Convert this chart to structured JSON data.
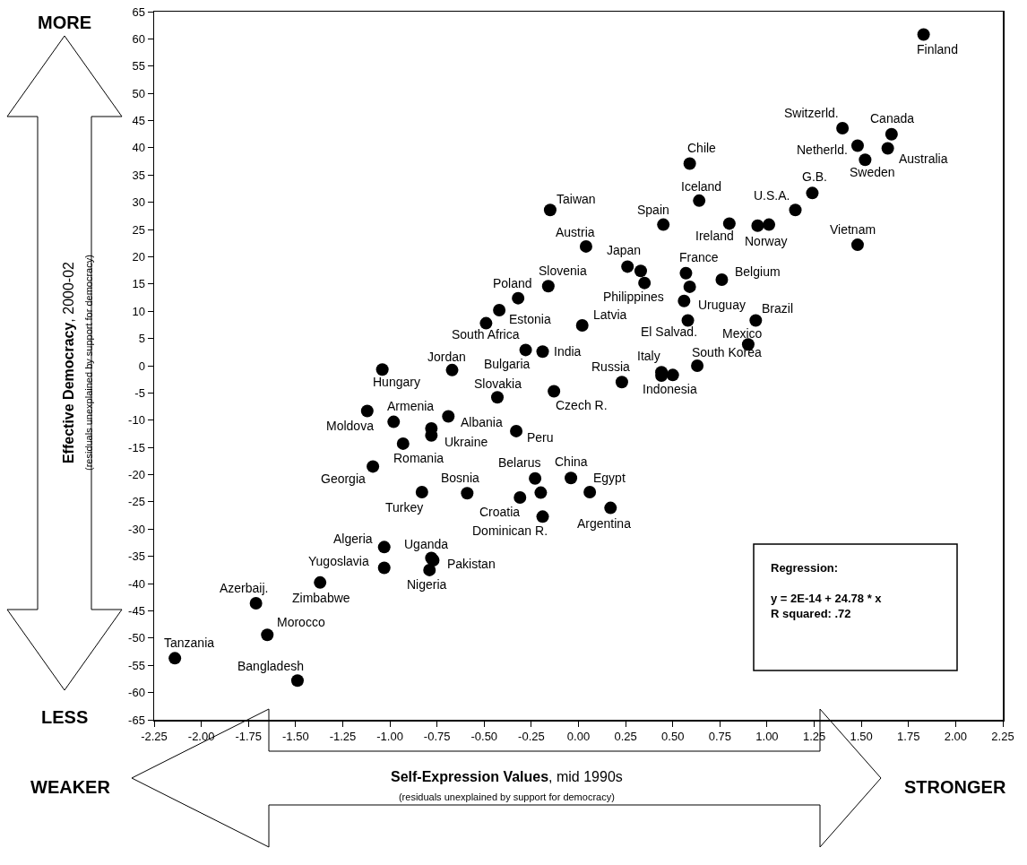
{
  "chart_data": {
    "type": "scatter",
    "color": "#000000",
    "marker": "circle",
    "grid": false,
    "xlabel": "Self-Expression Values, mid 1990s\n(residuals unexplained by support for democracy)",
    "ylabel": "Effective Democracy, 2000-02\n(residuals unexplained by support for democracy)",
    "xlim": [
      -2.25,
      2.25
    ],
    "xticks": [
      {
        "value": -2.25,
        "label": "-2.25"
      },
      {
        "value": -2,
        "label": "-2.00"
      },
      {
        "value": -1.75,
        "label": "-1.75"
      },
      {
        "value": -1.5,
        "label": "-1.50"
      },
      {
        "value": -1.25,
        "label": "-1.25"
      },
      {
        "value": -1,
        "label": "-1.00"
      },
      {
        "value": -0.75,
        "label": "-0.75"
      },
      {
        "value": -0.5,
        "label": "-0.50"
      },
      {
        "value": -0.25,
        "label": "-0.25"
      },
      {
        "value": 0,
        "label": "0.00"
      },
      {
        "value": 0.25,
        "label": "0.25"
      },
      {
        "value": 0.5,
        "label": "0.50"
      },
      {
        "value": 0.75,
        "label": "0.75"
      },
      {
        "value": 1,
        "label": "1.00"
      },
      {
        "value": 1.25,
        "label": "1.25"
      },
      {
        "value": 1.5,
        "label": "1.50"
      },
      {
        "value": 1.75,
        "label": "1.75"
      },
      {
        "value": 2,
        "label": "2.00"
      },
      {
        "value": 2.25,
        "label": "2.25"
      }
    ],
    "ylim": [
      -65,
      65
    ],
    "yticks": [
      -65,
      -60,
      -55,
      -50,
      -45,
      -40,
      -35,
      -30,
      -25,
      -20,
      -15,
      -10,
      -5,
      0,
      5,
      10,
      15,
      20,
      25,
      30,
      35,
      40,
      45,
      50,
      55,
      60,
      65
    ],
    "x": [
      1.83,
      1.4,
      1.66,
      1.48,
      1.64,
      1.52,
      0.59,
      1.24,
      0.64,
      1.15,
      0.45,
      0.8,
      0.95,
      1.01,
      1.48,
      -0.15,
      0.04,
      0.26,
      0.33,
      0.35,
      0.57,
      0.59,
      0.76,
      0.56,
      0.58,
      0.94,
      0.9,
      0.63,
      -0.16,
      -0.32,
      -0.42,
      -0.49,
      0.02,
      -0.28,
      -0.19,
      -0.67,
      -1.04,
      -0.43,
      -0.13,
      0.23,
      0.44,
      0.44,
      0.5,
      -0.98,
      -1.12,
      -0.69,
      -0.78,
      -0.78,
      -0.93,
      -0.33,
      -1.09,
      -0.83,
      -0.59,
      -0.23,
      -0.04,
      -0.31,
      -0.2,
      -0.19,
      0.06,
      0.17,
      -1.03,
      -1.03,
      -0.78,
      -0.77,
      -0.79,
      -1.37,
      -1.71,
      -1.65,
      -2.14,
      -1.49
    ],
    "values": [
      60.8,
      43.6,
      42.5,
      40.4,
      39.9,
      37.8,
      37.1,
      31.7,
      30.3,
      28.6,
      25.9,
      26.1,
      25.7,
      25.9,
      22.2,
      28.6,
      21.9,
      18.2,
      17.4,
      15.2,
      17.0,
      14.5,
      15.8,
      11.9,
      8.3,
      8.3,
      3.9,
      0.0,
      14.6,
      12.4,
      10.2,
      7.8,
      7.4,
      2.9,
      2.6,
      -0.8,
      -0.7,
      -5.8,
      -4.7,
      -3.0,
      -1.2,
      -1.8,
      -1.7,
      -10.3,
      -8.3,
      -9.3,
      -11.5,
      -12.8,
      -14.3,
      -12.0,
      -18.5,
      -23.2,
      -23.4,
      -20.7,
      -20.6,
      -24.2,
      -23.3,
      -27.7,
      -23.2,
      -26.1,
      -33.3,
      -37.1,
      -35.3,
      -35.7,
      -37.5,
      -39.8,
      -43.6,
      -49.4,
      -53.7,
      -57.8
    ],
    "annotations": [
      {
        "text": "Finland",
        "x": 1.83,
        "y": 60.8
      },
      {
        "text": "Switzerld.",
        "x": 1.4,
        "y": 43.6
      },
      {
        "text": "Canada",
        "x": 1.66,
        "y": 42.5
      },
      {
        "text": "Netherld.",
        "x": 1.48,
        "y": 40.4
      },
      {
        "text": "Australia",
        "x": 1.64,
        "y": 39.9
      },
      {
        "text": "Sweden",
        "x": 1.52,
        "y": 37.8
      },
      {
        "text": "Chile",
        "x": 0.59,
        "y": 37.1
      },
      {
        "text": "G.B.",
        "x": 1.24,
        "y": 31.7
      },
      {
        "text": "Iceland",
        "x": 0.64,
        "y": 30.3
      },
      {
        "text": "U.S.A.",
        "x": 1.15,
        "y": 28.6
      },
      {
        "text": "Spain",
        "x": 0.45,
        "y": 25.9
      },
      {
        "text": "Ireland",
        "x": 0.8,
        "y": 26.1
      },
      {
        "text": "Norway",
        "x": 1.01,
        "y": 25.9
      },
      {
        "text": "Vietnam",
        "x": 1.48,
        "y": 22.2
      },
      {
        "text": "Taiwan",
        "x": -0.15,
        "y": 28.6
      },
      {
        "text": "Austria",
        "x": 0.04,
        "y": 21.9
      },
      {
        "text": "Japan",
        "x": 0.26,
        "y": 18.2
      },
      {
        "text": "Philippines",
        "x": 0.35,
        "y": 15.2
      },
      {
        "text": "France",
        "x": 0.57,
        "y": 17.0
      },
      {
        "text": "Belgium",
        "x": 0.76,
        "y": 15.8
      },
      {
        "text": "Uruguay",
        "x": 0.56,
        "y": 11.9
      },
      {
        "text": "El Salvad.",
        "x": 0.58,
        "y": 8.3
      },
      {
        "text": "Brazil",
        "x": 0.94,
        "y": 8.3
      },
      {
        "text": "Mexico",
        "x": 0.9,
        "y": 3.9
      },
      {
        "text": "South Korea",
        "x": 0.63,
        "y": 0.0
      },
      {
        "text": "Slovenia",
        "x": -0.16,
        "y": 14.6
      },
      {
        "text": "Poland",
        "x": -0.32,
        "y": 12.4
      },
      {
        "text": "Estonia",
        "x": -0.42,
        "y": 10.2
      },
      {
        "text": "South Africa",
        "x": -0.49,
        "y": 7.8
      },
      {
        "text": "Latvia",
        "x": 0.02,
        "y": 7.4
      },
      {
        "text": "Bulgaria",
        "x": -0.28,
        "y": 2.9
      },
      {
        "text": "India",
        "x": -0.19,
        "y": 2.6
      },
      {
        "text": "Jordan",
        "x": -0.67,
        "y": -0.8
      },
      {
        "text": "Hungary",
        "x": -1.04,
        "y": -0.7
      },
      {
        "text": "Slovakia",
        "x": -0.43,
        "y": -5.8
      },
      {
        "text": "Czech R.",
        "x": -0.13,
        "y": -4.7
      },
      {
        "text": "Russia",
        "x": 0.23,
        "y": -3.0
      },
      {
        "text": "Italy",
        "x": 0.44,
        "y": -1.2
      },
      {
        "text": "Indonesia",
        "x": 0.5,
        "y": -1.7
      },
      {
        "text": "Armenia",
        "x": -0.98,
        "y": -10.3
      },
      {
        "text": "Moldova",
        "x": -1.12,
        "y": -8.3
      },
      {
        "text": "Albania",
        "x": -0.69,
        "y": -9.3
      },
      {
        "text": "Ukraine",
        "x": -0.78,
        "y": -12.8
      },
      {
        "text": "Romania",
        "x": -0.93,
        "y": -14.3
      },
      {
        "text": "Peru",
        "x": -0.33,
        "y": -12.0
      },
      {
        "text": "Georgia",
        "x": -1.09,
        "y": -18.5
      },
      {
        "text": "Turkey",
        "x": -0.83,
        "y": -23.2
      },
      {
        "text": "Bosnia",
        "x": -0.59,
        "y": -23.4
      },
      {
        "text": "Belarus",
        "x": -0.23,
        "y": -20.7
      },
      {
        "text": "China",
        "x": -0.04,
        "y": -20.6
      },
      {
        "text": "Croatia",
        "x": -0.31,
        "y": -24.2
      },
      {
        "text": "Dominican R.",
        "x": -0.19,
        "y": -27.7
      },
      {
        "text": "Egypt",
        "x": 0.06,
        "y": -23.2
      },
      {
        "text": "Argentina",
        "x": 0.17,
        "y": -26.1
      },
      {
        "text": "Algeria",
        "x": -1.03,
        "y": -33.3
      },
      {
        "text": "Yugoslavia",
        "x": -1.03,
        "y": -37.1
      },
      {
        "text": "Uganda",
        "x": -0.78,
        "y": -35.3
      },
      {
        "text": "Pakistan",
        "x": -0.77,
        "y": -35.7
      },
      {
        "text": "Nigeria",
        "x": -0.79,
        "y": -37.5
      },
      {
        "text": "Zimbabwe",
        "x": -1.37,
        "y": -39.8
      },
      {
        "text": "Azerbaij.",
        "x": -1.71,
        "y": -43.6
      },
      {
        "text": "Morocco",
        "x": -1.65,
        "y": -49.4
      },
      {
        "text": "Tanzania",
        "x": -2.14,
        "y": -53.7
      },
      {
        "text": "Bangladesh",
        "x": -1.49,
        "y": -57.8
      },
      "MORE",
      "LESS",
      "WEAKER",
      "STRONGER",
      "Regression:",
      "y = 2E-14 + 24.78 * x",
      "R squared: .72"
    ]
  }
}
